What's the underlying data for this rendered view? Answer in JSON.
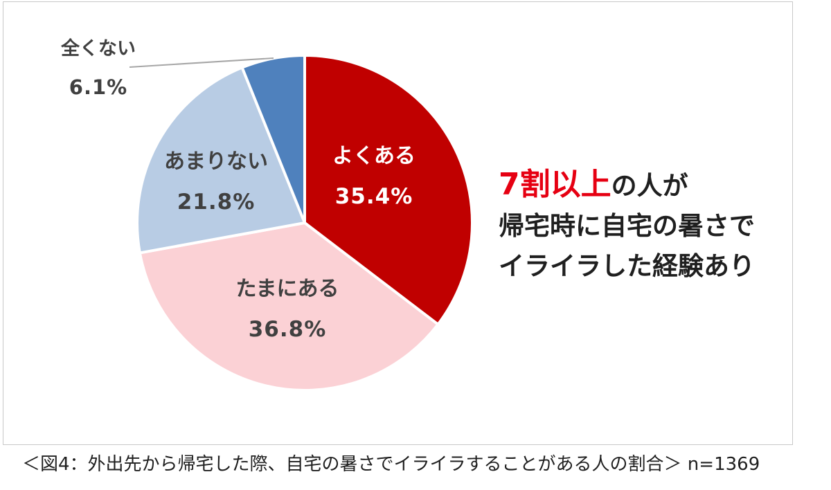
{
  "chart_data": {
    "type": "pie",
    "slices": [
      {
        "label": "よくある",
        "value": 35.4,
        "display": "35.4%",
        "color": "#c00000",
        "text_color": "#ffffff"
      },
      {
        "label": "たまにある",
        "value": 36.8,
        "display": "36.8%",
        "color": "#fbd1d5",
        "text_color": "#404040"
      },
      {
        "label": "あまりない",
        "value": 21.8,
        "display": "21.8%",
        "color": "#b8cce4",
        "text_color": "#404040"
      },
      {
        "label": "全くない",
        "value": 6.1,
        "display": "6.1%",
        "color": "#4f81bd",
        "text_color": "#404040"
      }
    ]
  },
  "callout": {
    "highlight": "7割以上",
    "line1_rest": "の人が",
    "line2": "帰宅時に自宅の暑さで",
    "line3": "イライラした経験あり"
  },
  "caption": "＜図4：外出先から帰宅した際、自宅の暑さでイライラすることがある人の割合＞ n=1369"
}
